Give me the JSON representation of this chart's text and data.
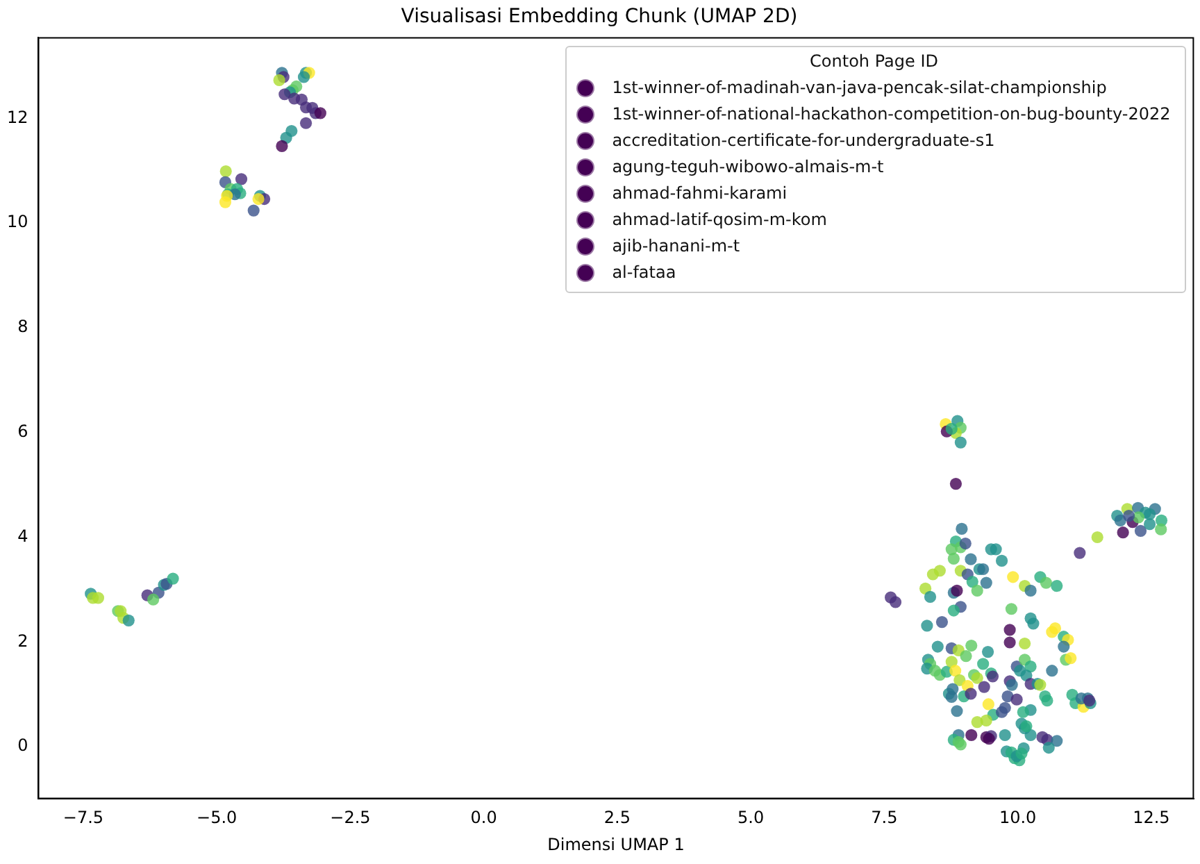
{
  "chart_data": {
    "type": "scatter",
    "title": "Visualisasi Embedding Chunk (UMAP 2D)",
    "xlabel": "Dimensi UMAP 1",
    "legend_title": "Contoh Page ID",
    "legend": "top right",
    "marker": "circle",
    "grid": false,
    "xlim": [
      -8.35,
      13.3
    ],
    "ylim": [
      -1.0,
      13.55
    ],
    "xticks": [
      {
        "value": -7.5,
        "label": "−7.5"
      },
      {
        "value": -5,
        "label": "−5.0"
      },
      {
        "value": -2.5,
        "label": "−2.5"
      },
      {
        "value": 0,
        "label": "0.0"
      },
      {
        "value": 2.5,
        "label": "2.5"
      },
      {
        "value": 5,
        "label": "5.0"
      },
      {
        "value": 7.5,
        "label": "7.5"
      },
      {
        "value": 10,
        "label": "10.0"
      },
      {
        "value": 12.5,
        "label": "12.5"
      }
    ],
    "yticks": [
      0,
      2,
      4,
      6,
      8,
      10,
      12
    ],
    "series": [
      {
        "x": [
          -3.78,
          -3.75,
          -3.83,
          -3.33,
          -3.27,
          -3.37,
          -3.58,
          -3.51,
          -3.63,
          -3.73,
          -3.55,
          -3.41,
          -3.33,
          -3.21,
          -3.15,
          -3.06,
          -3.33,
          -3.6,
          -3.7,
          -3.78,
          -4.83,
          -4.84,
          -4.54,
          -4.74,
          -4.62,
          -4.56,
          -4.79,
          -4.66,
          -4.84,
          -4.81,
          -4.19,
          -4.11,
          -4.22,
          -4.31,
          -7.36,
          -7.32,
          -7.22,
          -6.85,
          -6.8,
          -6.75,
          -6.65,
          -6.3,
          -6.09,
          -6.19,
          -5.99,
          -5.94,
          -5.82,
          8.65,
          8.87,
          8.93,
          8.84,
          8.93,
          8.67,
          8.76,
          8.84,
          11.86,
          12.05,
          12.25,
          12.57,
          12.47,
          12.39,
          12.15,
          11.92,
          12.3,
          11.97,
          12.69,
          12.68,
          12.26,
          12.47,
          12.08,
          11.49,
          11.16,
          8.95,
          8.84,
          8.76,
          8.93,
          9.02,
          8.8,
          9.12,
          9.5,
          9.59,
          9.7,
          9.28,
          9.35,
          8.41,
          8.54,
          8.93,
          9.06,
          9.91,
          10.13,
          10.42,
          10.53,
          10.73,
          10.24,
          8.27,
          8.36,
          8.8,
          8.86,
          9.15,
          9.24,
          9.41,
          8.93,
          8.8,
          9.88,
          8.58,
          8.3,
          7.62,
          7.71,
          10.24,
          10.29,
          10.64,
          10.7,
          10.86,
          10.94,
          9.85,
          10.86,
          10.9,
          10.99,
          8.5,
          8.76,
          9.13,
          8.89,
          9.44,
          9.85,
          10.13,
          8.32,
          8.36,
          8.3,
          8.45,
          8.54,
          8.67,
          8.76,
          8.83,
          8.91,
          9.03,
          9.06,
          9.18,
          9.24,
          9.35,
          9.5,
          9.53,
          9.37,
          9.98,
          10.04,
          10.13,
          10.24,
          10.16,
          9.85,
          9.89,
          10.24,
          10.37,
          10.42,
          10.64,
          8.71,
          8.76,
          8.78,
          8.99,
          9.12,
          8.86,
          9.45,
          9.54,
          9.7,
          9.76,
          9.81,
          9.98,
          10.24,
          10.1,
          9.24,
          9.41,
          10.07,
          10.13,
          10.24,
          10.16,
          10.51,
          10.55,
          11.02,
          11.08,
          11.23,
          11.19,
          11.31,
          11.36,
          11.34,
          8.89,
          8.8,
          8.89,
          8.93,
          9.13,
          9.41,
          9.5,
          9.46,
          9.76,
          9.79,
          9.88,
          9.94,
          10.03,
          9.98,
          10.11,
          10.07,
          10.46,
          10.55,
          10.73,
          10.58
        ],
        "values": [
          12.87,
          12.79,
          12.73,
          12.87,
          12.87,
          12.79,
          12.54,
          12.61,
          12.5,
          12.46,
          12.38,
          12.36,
          12.21,
          12.2,
          12.1,
          12.1,
          11.91,
          11.76,
          11.63,
          11.47,
          10.99,
          10.78,
          10.84,
          10.65,
          10.65,
          10.57,
          10.55,
          10.55,
          10.4,
          10.52,
          10.52,
          10.46,
          10.46,
          10.24,
          2.92,
          2.84,
          2.84,
          2.59,
          2.59,
          2.46,
          2.41,
          2.89,
          2.94,
          2.81,
          3.09,
          3.11,
          3.21,
          6.16,
          6.22,
          6.09,
          5.99,
          5.81,
          6.02,
          6.07,
          5.02,
          4.41,
          4.54,
          4.56,
          4.54,
          4.44,
          4.47,
          4.29,
          4.32,
          4.12,
          4.09,
          4.32,
          4.15,
          4.38,
          4.25,
          4.41,
          4.0,
          3.7,
          4.16,
          3.92,
          3.77,
          3.81,
          3.88,
          3.59,
          3.58,
          3.77,
          3.77,
          3.55,
          3.39,
          3.39,
          3.29,
          3.36,
          3.36,
          3.29,
          3.24,
          3.07,
          3.24,
          3.13,
          3.07,
          2.98,
          3.02,
          2.86,
          2.94,
          2.98,
          3.15,
          2.98,
          3.13,
          2.67,
          2.6,
          2.63,
          2.38,
          2.31,
          2.85,
          2.76,
          2.45,
          2.35,
          2.19,
          2.26,
          2.1,
          2.04,
          2.23,
          1.91,
          1.66,
          1.69,
          1.91,
          1.88,
          1.93,
          1.84,
          1.81,
          1.99,
          1.97,
          1.66,
          1.58,
          1.49,
          1.45,
          1.37,
          1.43,
          1.62,
          1.45,
          1.27,
          1.73,
          1.16,
          1.37,
          1.31,
          1.58,
          1.4,
          1.34,
          1.14,
          1.53,
          1.45,
          1.66,
          1.53,
          1.36,
          1.25,
          1.18,
          1.2,
          1.2,
          1.18,
          1.45,
          1.01,
          0.95,
          1.1,
          0.96,
          1.01,
          0.68,
          0.81,
          0.61,
          0.66,
          0.74,
          0.96,
          0.9,
          0.7,
          0.66,
          0.47,
          0.5,
          0.44,
          0.35,
          0.22,
          0.39,
          0.96,
          0.88,
          0.99,
          0.83,
          0.76,
          0.92,
          0.92,
          0.83,
          0.88,
          0.22,
          0.13,
          0.09,
          0.04,
          0.22,
          0.18,
          0.2,
          0.15,
          0.22,
          -0.09,
          -0.11,
          -0.22,
          -0.26,
          -0.18,
          -0.03,
          -0.13,
          0.18,
          0.13,
          0.11,
          -0.02
        ],
        "colors": [
          "#2c728e",
          "#472d7b",
          "#addc30",
          "#21918c",
          "#fde725",
          "#21918c",
          "#5ec962",
          "#5ec962",
          "#21918c",
          "#472d7b",
          "#472d7b",
          "#472d7b",
          "#472d7b",
          "#472d7b",
          "#472d7b",
          "#440154",
          "#472d7b",
          "#21918c",
          "#21918c",
          "#440154",
          "#addc30",
          "#3b528b",
          "#472d7b",
          "#5ec962",
          "#28ae80",
          "#28ae80",
          "#28ae80",
          "#2c728e",
          "#fde725",
          "#fde725",
          "#21918c",
          "#472d7b",
          "#fde725",
          "#3b528b",
          "#21918c",
          "#addc30",
          "#addc30",
          "#5ec962",
          "#addc30",
          "#addc30",
          "#21918c",
          "#472d7b",
          "#3b528b",
          "#5ec962",
          "#21918c",
          "#3b528b",
          "#28ae80",
          "#fde725",
          "#21918c",
          "#5ec962",
          "#addc30",
          "#21918c",
          "#440154",
          "#28ae80",
          "#440154",
          "#21918c",
          "#addc30",
          "#2c728e",
          "#2c728e",
          "#21918c",
          "#21918c",
          "#440154",
          "#2c728e",
          "#3b528b",
          "#440154",
          "#28ae80",
          "#5ec962",
          "#5ec962",
          "#21918c",
          "#3b528b",
          "#addc30",
          "#472d7b",
          "#2c728e",
          "#28ae80",
          "#5ec962",
          "#5ec962",
          "#3b528b",
          "#5ec962",
          "#2c728e",
          "#21918c",
          "#21918c",
          "#21918c",
          "#21918c",
          "#2c728e",
          "#addc30",
          "#addc30",
          "#addc30",
          "#3b528b",
          "#fde725",
          "#addc30",
          "#28ae80",
          "#5ec962",
          "#28ae80",
          "#2c728e",
          "#addc30",
          "#21918c",
          "#2c728e",
          "#440154",
          "#28ae80",
          "#5ec962",
          "#2c728e",
          "#3b528b",
          "#28ae80",
          "#5ec962",
          "#3b528b",
          "#21918c",
          "#472d7b",
          "#472d7b",
          "#21918c",
          "#21918c",
          "#fde725",
          "#fde725",
          "#28ae80",
          "#fde725",
          "#440154",
          "#2c728e",
          "#5ec962",
          "#fde725",
          "#21918c",
          "#3b528b",
          "#5ec962",
          "#addc30",
          "#21918c",
          "#440154",
          "#addc30",
          "#21918c",
          "#5ec962",
          "#21918c",
          "#5ec962",
          "#5ec962",
          "#28ae80",
          "#addc30",
          "#fde725",
          "#addc30",
          "#5ec962",
          "#fde725",
          "#5ec962",
          "#addc30",
          "#28ae80",
          "#28ae80",
          "#472d7b",
          "#472d7b",
          "#3b528b",
          "#21918c",
          "#5ec962",
          "#28ae80",
          "#21918c",
          "#472d7b",
          "#2c728e",
          "#472d7b",
          "#21918c",
          "#addc30",
          "#2c728e",
          "#21918c",
          "#2c728e",
          "#2c728e",
          "#28ae80",
          "#472d7b",
          "#2c728e",
          "#fde725",
          "#28ae80",
          "#3b528b",
          "#3b528b",
          "#3b528b",
          "#472d7b",
          "#21918c",
          "#28ae80",
          "#addc30",
          "#addc30",
          "#21918c",
          "#21918c",
          "#21918c",
          "#28ae80",
          "#28ae80",
          "#28ae80",
          "#28ae80",
          "#28ae80",
          "#fde725",
          "#2c728e",
          "#2c728e",
          "#21918c",
          "#472d7b",
          "#2c728e",
          "#28ae80",
          "#5ec962",
          "#5ec962",
          "#440154",
          "#440154",
          "#472d7b",
          "#440154",
          "#21918c",
          "#21918c",
          "#28ae80",
          "#28ae80",
          "#28ae80",
          "#21918c",
          "#21918c",
          "#28ae80",
          "#472d7b",
          "#472d7b",
          "#2c728e",
          "#21918c"
        ]
      },
      {
        "name": "1st-winner-of-madinah-van-java-pencak-silat-championship",
        "color": "#440154"
      },
      {
        "name": "1st-winner-of-national-hackathon-competition-on-bug-bounty-2022",
        "color": "#440154"
      },
      {
        "name": "accreditation-certificate-for-undergraduate-s1",
        "color": "#440154"
      },
      {
        "name": "agung-teguh-wibowo-almais-m-t",
        "color": "#440154"
      },
      {
        "name": "ahmad-fahmi-karami",
        "color": "#440154"
      },
      {
        "name": "ahmad-latif-qosim-m-kom",
        "color": "#440154"
      },
      {
        "name": "ajib-hanani-m-t",
        "color": "#440154"
      },
      {
        "name": "al-fataa",
        "color": "#440154"
      }
    ]
  }
}
